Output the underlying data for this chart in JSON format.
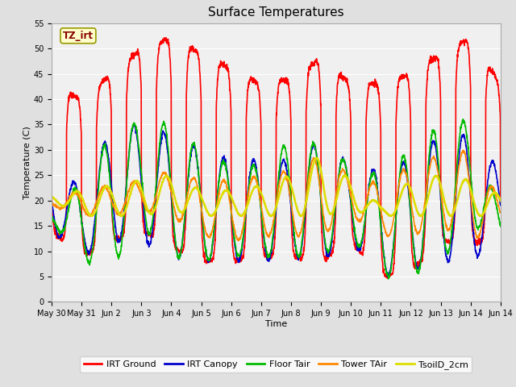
{
  "title": "Surface Temperatures",
  "xlabel": "Time",
  "ylabel": "Temperature (C)",
  "ylim": [
    0,
    55
  ],
  "yticks": [
    0,
    5,
    10,
    15,
    20,
    25,
    30,
    35,
    40,
    45,
    50,
    55
  ],
  "num_days": 15,
  "annotation_text": "TZ_irt",
  "annotation_bg": "#ffffcc",
  "annotation_border": "#999900",
  "series_colors": {
    "IRT Ground": "#ff0000",
    "IRT Canopy": "#0000cc",
    "Floor Tair": "#00bb00",
    "Tower TAir": "#ff8800",
    "TsoilD_2cm": "#dddd00"
  },
  "line_widths": {
    "IRT Ground": 1.2,
    "IRT Canopy": 1.2,
    "Floor Tair": 1.2,
    "Tower TAir": 1.2,
    "TsoilD_2cm": 1.8
  },
  "bg_color": "#e0e0e0",
  "plot_bg": "#f0f0f0",
  "title_fontsize": 11,
  "axis_fontsize": 8,
  "tick_fontsize": 7,
  "legend_fontsize": 8
}
